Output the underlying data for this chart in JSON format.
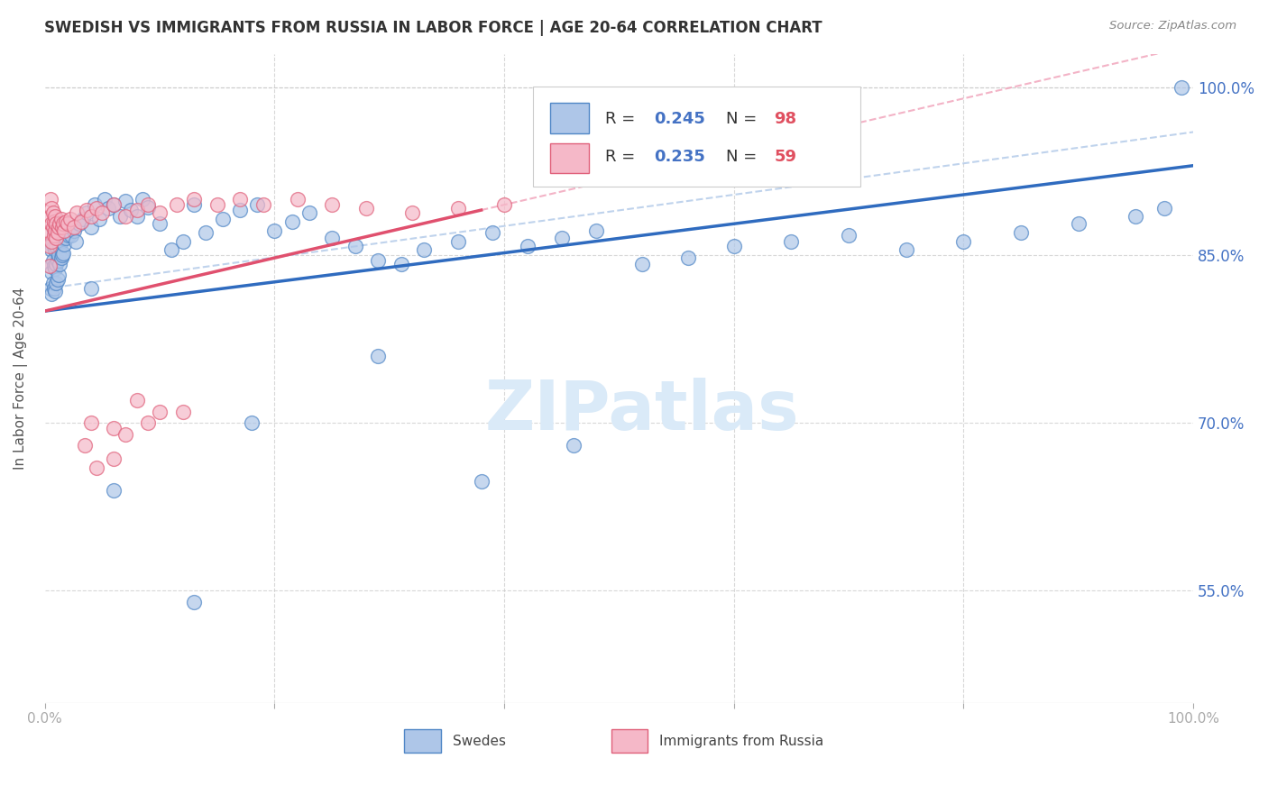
{
  "title": "SWEDISH VS IMMIGRANTS FROM RUSSIA IN LABOR FORCE | AGE 20-64 CORRELATION CHART",
  "source": "Source: ZipAtlas.com",
  "ylabel": "In Labor Force | Age 20-64",
  "xlim": [
    0.0,
    1.0
  ],
  "ylim": [
    0.45,
    1.03
  ],
  "yticks": [
    0.55,
    0.7,
    0.85,
    1.0
  ],
  "ytick_labels": [
    "55.0%",
    "70.0%",
    "85.0%",
    "100.0%"
  ],
  "xticks": [
    0.0,
    0.2,
    0.4,
    0.6,
    0.8,
    1.0
  ],
  "xtick_labels": [
    "0.0%",
    "",
    "",
    "",
    "",
    "100.0%"
  ],
  "background_color": "#ffffff",
  "grid_color": "#c8c8c8",
  "swedes_color": "#aec6e8",
  "swedes_edge_color": "#4f86c6",
  "russia_color": "#f5b8c8",
  "russia_edge_color": "#e0607a",
  "trend_blue": "#2f6bbf",
  "trend_pink": "#e0506e",
  "trend_dashed_blue": "#b0c8e8",
  "trend_dashed_pink": "#f0a0b8",
  "watermark_color": "#daeaf8",
  "legend_R_blue": "0.245",
  "legend_N_blue": "98",
  "legend_R_pink": "0.235",
  "legend_N_pink": "59",
  "swedes_label": "Swedes",
  "russia_label": "Immigrants from Russia",
  "swedes_x": [
    0.005,
    0.005,
    0.005,
    0.006,
    0.006,
    0.006,
    0.007,
    0.007,
    0.007,
    0.008,
    0.008,
    0.008,
    0.008,
    0.009,
    0.009,
    0.009,
    0.01,
    0.01,
    0.01,
    0.01,
    0.01,
    0.011,
    0.011,
    0.012,
    0.012,
    0.012,
    0.013,
    0.013,
    0.014,
    0.014,
    0.015,
    0.015,
    0.016,
    0.016,
    0.017,
    0.018,
    0.019,
    0.02,
    0.021,
    0.022,
    0.023,
    0.025,
    0.027,
    0.03,
    0.033,
    0.036,
    0.04,
    0.043,
    0.047,
    0.052,
    0.055,
    0.06,
    0.065,
    0.07,
    0.075,
    0.08,
    0.085,
    0.09,
    0.1,
    0.11,
    0.12,
    0.13,
    0.14,
    0.155,
    0.17,
    0.185,
    0.2,
    0.215,
    0.23,
    0.25,
    0.27,
    0.29,
    0.31,
    0.33,
    0.36,
    0.39,
    0.42,
    0.45,
    0.48,
    0.52,
    0.56,
    0.6,
    0.65,
    0.7,
    0.75,
    0.8,
    0.85,
    0.9,
    0.95,
    0.975,
    0.99,
    0.29,
    0.38,
    0.46,
    0.18,
    0.13,
    0.06,
    0.04
  ],
  "swedes_y": [
    0.82,
    0.84,
    0.86,
    0.815,
    0.835,
    0.855,
    0.825,
    0.845,
    0.862,
    0.82,
    0.84,
    0.858,
    0.872,
    0.818,
    0.838,
    0.855,
    0.825,
    0.842,
    0.858,
    0.87,
    0.88,
    0.828,
    0.845,
    0.832,
    0.85,
    0.865,
    0.842,
    0.858,
    0.848,
    0.862,
    0.85,
    0.865,
    0.852,
    0.868,
    0.86,
    0.865,
    0.87,
    0.872,
    0.868,
    0.875,
    0.868,
    0.872,
    0.862,
    0.878,
    0.882,
    0.888,
    0.875,
    0.895,
    0.882,
    0.9,
    0.892,
    0.895,
    0.885,
    0.898,
    0.89,
    0.885,
    0.9,
    0.893,
    0.878,
    0.855,
    0.862,
    0.895,
    0.87,
    0.882,
    0.89,
    0.895,
    0.872,
    0.88,
    0.888,
    0.865,
    0.858,
    0.845,
    0.842,
    0.855,
    0.862,
    0.87,
    0.858,
    0.865,
    0.872,
    0.842,
    0.848,
    0.858,
    0.862,
    0.868,
    0.855,
    0.862,
    0.87,
    0.878,
    0.885,
    0.892,
    1.0,
    0.76,
    0.648,
    0.68,
    0.7,
    0.54,
    0.64,
    0.82
  ],
  "russia_x": [
    0.004,
    0.004,
    0.005,
    0.005,
    0.005,
    0.006,
    0.006,
    0.006,
    0.007,
    0.007,
    0.008,
    0.008,
    0.009,
    0.009,
    0.01,
    0.01,
    0.011,
    0.012,
    0.013,
    0.014,
    0.015,
    0.016,
    0.017,
    0.018,
    0.02,
    0.022,
    0.025,
    0.028,
    0.032,
    0.036,
    0.04,
    0.045,
    0.05,
    0.06,
    0.07,
    0.08,
    0.09,
    0.1,
    0.115,
    0.13,
    0.15,
    0.17,
    0.19,
    0.22,
    0.25,
    0.28,
    0.32,
    0.36,
    0.4,
    0.1,
    0.08,
    0.06,
    0.04,
    0.035,
    0.07,
    0.09,
    0.12,
    0.06,
    0.045
  ],
  "russia_y": [
    0.84,
    0.858,
    0.87,
    0.885,
    0.9,
    0.862,
    0.878,
    0.892,
    0.875,
    0.888,
    0.868,
    0.88,
    0.872,
    0.885,
    0.865,
    0.878,
    0.87,
    0.875,
    0.878,
    0.882,
    0.875,
    0.878,
    0.872,
    0.88,
    0.878,
    0.882,
    0.875,
    0.888,
    0.88,
    0.89,
    0.885,
    0.892,
    0.888,
    0.895,
    0.885,
    0.89,
    0.895,
    0.888,
    0.895,
    0.9,
    0.895,
    0.9,
    0.895,
    0.9,
    0.895,
    0.892,
    0.888,
    0.892,
    0.895,
    0.71,
    0.72,
    0.695,
    0.7,
    0.68,
    0.69,
    0.7,
    0.71,
    0.668,
    0.66
  ]
}
